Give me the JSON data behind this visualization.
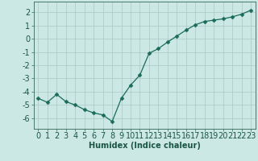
{
  "x": [
    0,
    1,
    2,
    3,
    4,
    5,
    6,
    7,
    8,
    9,
    10,
    11,
    12,
    13,
    14,
    15,
    16,
    17,
    18,
    19,
    20,
    21,
    22,
    23
  ],
  "y": [
    -4.5,
    -4.8,
    -4.2,
    -4.75,
    -5.0,
    -5.35,
    -5.6,
    -5.75,
    -6.25,
    -4.5,
    -3.5,
    -2.75,
    -1.1,
    -0.75,
    -0.25,
    0.2,
    0.65,
    1.05,
    1.3,
    1.4,
    1.5,
    1.65,
    1.85,
    2.15
  ],
  "line_color": "#1a6b5a",
  "marker": "D",
  "marker_size": 2.5,
  "bg_color": "#cce8e4",
  "grid_color": "#aac8c4",
  "xlabel": "Humidex (Indice chaleur)",
  "xlim": [
    -0.5,
    23.5
  ],
  "ylim": [
    -6.8,
    2.8
  ],
  "yticks": [
    -6,
    -5,
    -4,
    -3,
    -2,
    -1,
    0,
    1,
    2
  ],
  "xticks": [
    0,
    1,
    2,
    3,
    4,
    5,
    6,
    7,
    8,
    9,
    10,
    11,
    12,
    13,
    14,
    15,
    16,
    17,
    18,
    19,
    20,
    21,
    22,
    23
  ],
  "fontsize_label": 7,
  "fontsize_tick": 7
}
